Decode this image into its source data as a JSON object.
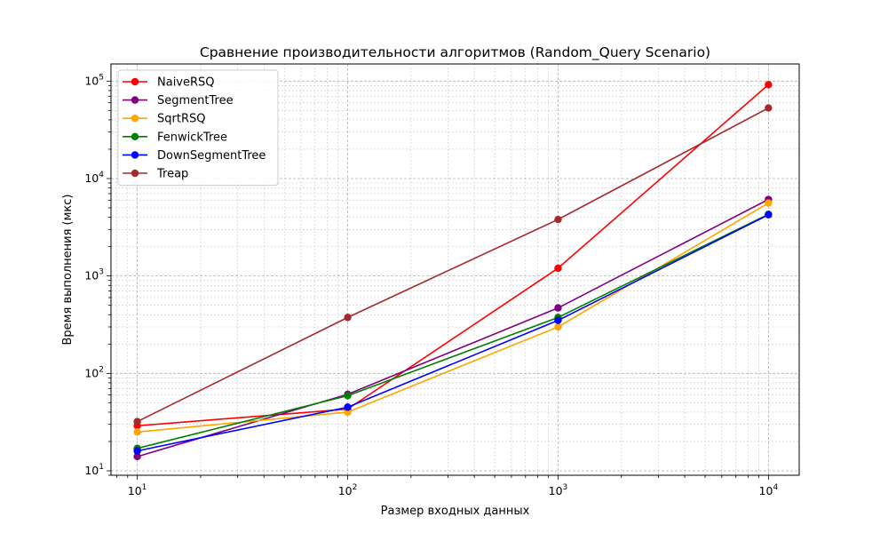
{
  "chart_data": {
    "type": "line",
    "title": "Сравнение производительности алгоритмов (Random_Query Scenario)",
    "xlabel": "Размер входных данных",
    "ylabel": "Время выполнения (мкс)",
    "xscale": "log",
    "yscale": "log",
    "xlim": [
      7.5,
      14000
    ],
    "ylim": [
      9,
      150000
    ],
    "grid": true,
    "legend_position": "top-left",
    "x": [
      10,
      100,
      1000,
      10000
    ],
    "x_ticks": [
      {
        "value": 10,
        "base": "10",
        "exp": "1"
      },
      {
        "value": 100,
        "base": "10",
        "exp": "2"
      },
      {
        "value": 1000,
        "base": "10",
        "exp": "3"
      },
      {
        "value": 10000,
        "base": "10",
        "exp": "4"
      }
    ],
    "y_ticks": [
      {
        "value": 10,
        "base": "10",
        "exp": "1"
      },
      {
        "value": 100,
        "base": "10",
        "exp": "2"
      },
      {
        "value": 1000,
        "base": "10",
        "exp": "3"
      },
      {
        "value": 10000,
        "base": "10",
        "exp": "4"
      },
      {
        "value": 100000,
        "base": "10",
        "exp": "5"
      }
    ],
    "series": [
      {
        "name": "NaiveRSQ",
        "color": "#ff0000",
        "values": [
          29,
          43,
          1200,
          92000
        ]
      },
      {
        "name": "SegmentTree",
        "color": "#800080",
        "values": [
          14,
          61,
          470,
          6100
        ]
      },
      {
        "name": "SqrtRSQ",
        "color": "#ffa500",
        "values": [
          25,
          40,
          300,
          5600
        ]
      },
      {
        "name": "FenwickTree",
        "color": "#008000",
        "values": [
          17,
          59,
          375,
          4300
        ]
      },
      {
        "name": "DownSegmentTree",
        "color": "#0000ff",
        "values": [
          16,
          45,
          350,
          4250
        ]
      },
      {
        "name": "Treap",
        "color": "#a52a2a",
        "values": [
          32,
          375,
          3800,
          53000
        ]
      }
    ]
  }
}
